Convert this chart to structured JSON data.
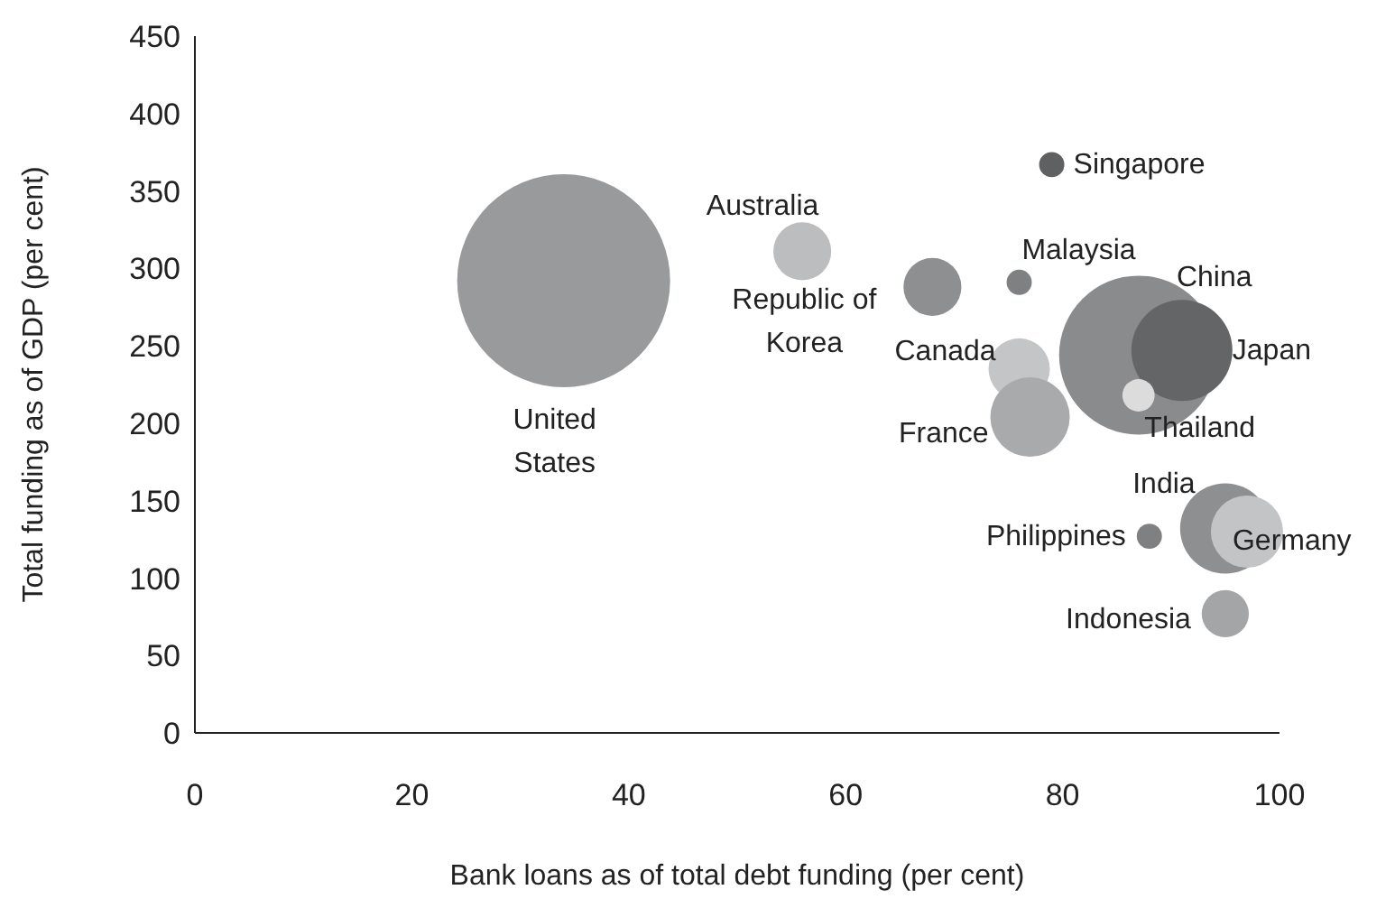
{
  "chart_data": {
    "type": "bubble",
    "xlabel": "Bank loans as of total debt funding (per cent)",
    "ylabel": "Total funding as of GDP (per cent)",
    "series": [
      {
        "name": "United States",
        "color": "#999a9c",
        "x": [
          34
        ],
        "values": [
          292
        ],
        "sizes": [
          1
        ]
      },
      {
        "name": "Australia",
        "color": "#bcbdbf",
        "x": [
          56
        ],
        "values": [
          311
        ],
        "sizes": [
          0.074
        ]
      },
      {
        "name": "Republic of Korea",
        "color": "#8e8f91",
        "x": [
          68
        ],
        "values": [
          288
        ],
        "sizes": [
          0.074
        ]
      },
      {
        "name": "Malaysia",
        "color": "#7f8082",
        "x": [
          76
        ],
        "values": [
          291
        ],
        "sizes": [
          0.014
        ]
      },
      {
        "name": "Singapore",
        "color": "#5f6062",
        "x": [
          79
        ],
        "values": [
          367
        ],
        "sizes": [
          0.014
        ]
      },
      {
        "name": "Canada",
        "color": "#c4c5c7",
        "x": [
          76
        ],
        "values": [
          235
        ],
        "sizes": [
          0.083
        ]
      },
      {
        "name": "France",
        "color": "#a9aaac",
        "x": [
          77
        ],
        "values": [
          204
        ],
        "sizes": [
          0.139
        ]
      },
      {
        "name": "China",
        "color": "#8a8b8d",
        "x": [
          87
        ],
        "values": [
          244
        ],
        "sizes": [
          0.556
        ]
      },
      {
        "name": "Japan",
        "color": "#646567",
        "x": [
          91
        ],
        "values": [
          247
        ],
        "sizes": [
          0.225
        ]
      },
      {
        "name": "Thailand",
        "color": "#dcdcdc",
        "x": [
          87
        ],
        "values": [
          218
        ],
        "sizes": [
          0.023
        ]
      },
      {
        "name": "India",
        "color": "#8e8f91",
        "x": [
          95
        ],
        "values": [
          132
        ],
        "sizes": [
          0.18
        ]
      },
      {
        "name": "Germany",
        "color": "#c3c4c6",
        "x": [
          97
        ],
        "values": [
          130
        ],
        "sizes": [
          0.115
        ]
      },
      {
        "name": "Philippines",
        "color": "#7f8082",
        "x": [
          88
        ],
        "values": [
          127
        ],
        "sizes": [
          0.014
        ]
      },
      {
        "name": "Indonesia",
        "color": "#a4a5a7",
        "x": [
          95
        ],
        "values": [
          77
        ],
        "sizes": [
          0.049
        ]
      }
    ],
    "xlim": [
      0,
      100
    ],
    "xticks": [
      0,
      20,
      40,
      60,
      80,
      100
    ],
    "ylim": [
      0,
      450
    ],
    "yticks": [
      0,
      50,
      100,
      150,
      200,
      250,
      300,
      350,
      400,
      450
    ],
    "grid": false,
    "legend": false
  }
}
